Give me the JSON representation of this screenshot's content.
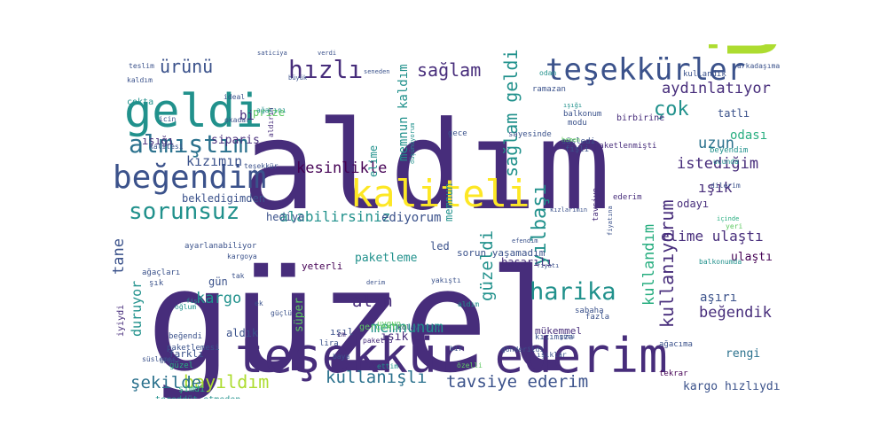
{
  "word_cloud": {
    "palette": {
      "purple": "#472d7b",
      "dark_purple": "#440154",
      "indigo": "#3b528b",
      "blue": "#2c728e",
      "teal": "#21918c",
      "green": "#28ae80",
      "lime": "#5ec962",
      "yellow_green": "#addc30",
      "yellow": "#fde725"
    },
    "words": [
      {
        "text": "güzel",
        "color": "purple"
      },
      {
        "text": "aldım",
        "color": "purple"
      },
      {
        "text": "ürün",
        "color": "yellow_green"
      },
      {
        "text": "teşekkür ederim",
        "color": "purple"
      },
      {
        "text": "kaliteli",
        "color": "yellow"
      },
      {
        "text": "geldi",
        "color": "teal"
      },
      {
        "text": "beğendim",
        "color": "indigo"
      },
      {
        "text": "almıştım",
        "color": "blue"
      },
      {
        "text": "teşekkürler",
        "color": "indigo"
      },
      {
        "text": "sorunsuz",
        "color": "teal"
      },
      {
        "text": "harika",
        "color": "teal"
      },
      {
        "text": "hızlı",
        "color": "purple"
      },
      {
        "text": "ürünü",
        "color": "indigo"
      },
      {
        "text": "sağlam",
        "color": "purple"
      },
      {
        "text": "yılbaşı",
        "color": "teal"
      },
      {
        "text": "sağlam geldi",
        "color": "teal"
      },
      {
        "text": "çok",
        "color": "teal"
      },
      {
        "text": "aydınlatıyor",
        "color": "purple"
      },
      {
        "text": "uzun",
        "color": "blue"
      },
      {
        "text": "odası",
        "color": "green"
      },
      {
        "text": "istediğim",
        "color": "purple"
      },
      {
        "text": "ışık",
        "color": "purple"
      },
      {
        "text": "kullanıyorum",
        "color": "purple"
      },
      {
        "text": "kesinlikle",
        "color": "dark_purple"
      },
      {
        "text": "bayıldım",
        "color": "yellow_green"
      },
      {
        "text": "kullanışlı",
        "color": "blue"
      },
      {
        "text": "tavsiye ederim",
        "color": "indigo"
      },
      {
        "text": "şekilde",
        "color": "blue"
      },
      {
        "text": "kargo",
        "color": "teal"
      },
      {
        "text": "tane",
        "color": "indigo"
      },
      {
        "text": "alın",
        "color": "purple"
      },
      {
        "text": "güzeldi",
        "color": "teal"
      },
      {
        "text": "memnunum",
        "color": "teal"
      },
      {
        "text": "beğendik",
        "color": "purple"
      },
      {
        "text": "kullandım",
        "color": "green"
      },
      {
        "text": "elime ulaştı",
        "color": "purple"
      },
      {
        "text": "alabilirsiniz",
        "color": "teal"
      },
      {
        "text": "ediyorum",
        "color": "indigo"
      },
      {
        "text": "duruyor",
        "color": "teal"
      },
      {
        "text": "aşırı",
        "color": "indigo"
      },
      {
        "text": "rengi",
        "color": "blue"
      },
      {
        "text": "kargo hızlıydı",
        "color": "indigo"
      },
      {
        "text": "ulaştı",
        "color": "dark_purple"
      },
      {
        "text": "ışık",
        "color": "purple"
      },
      {
        "text": "kızımın",
        "color": "indigo"
      },
      {
        "text": "paketleme",
        "color": "teal"
      },
      {
        "text": "memnun",
        "color": "teal"
      },
      {
        "text": "memnun kaldım",
        "color": "teal"
      },
      {
        "text": "elime",
        "color": "teal"
      },
      {
        "text": "hediye",
        "color": "indigo"
      },
      {
        "text": "bekledigimden",
        "color": "indigo"
      },
      {
        "text": "sipariş",
        "color": "purple"
      },
      {
        "text": "bi",
        "color": "purple"
      },
      {
        "text": "prize",
        "color": "lime"
      },
      {
        "text": "ışığı",
        "color": "purple"
      },
      {
        "text": "led",
        "color": "indigo"
      },
      {
        "text": "başarılı",
        "color": "purple"
      },
      {
        "text": "aldık",
        "color": "indigo"
      },
      {
        "text": "gün",
        "color": "indigo"
      },
      {
        "text": "süper",
        "color": "lime"
      },
      {
        "text": "ışıl",
        "color": "indigo"
      },
      {
        "text": "tatlı",
        "color": "indigo"
      },
      {
        "text": "odayı",
        "color": "purple"
      },
      {
        "text": "yeterli",
        "color": "dark_purple"
      },
      {
        "text": "sorun yaşamadım",
        "color": "indigo"
      },
      {
        "text": "çokta",
        "color": "teal"
      },
      {
        "text": "ramazan",
        "color": "indigo"
      },
      {
        "text": "paketlenmişti",
        "color": "purple"
      },
      {
        "text": "birbirine",
        "color": "purple"
      },
      {
        "text": "ederim",
        "color": "purple"
      },
      {
        "text": "mükemmel",
        "color": "purple"
      },
      {
        "text": "ağacıma",
        "color": "indigo"
      },
      {
        "text": "tekrar",
        "color": "dark_purple"
      },
      {
        "text": "fazla",
        "color": "indigo"
      },
      {
        "text": "sabaha",
        "color": "indigo"
      },
      {
        "text": "farklı",
        "color": "indigo"
      },
      {
        "text": "güzel",
        "color": "green"
      },
      {
        "text": "şimdi",
        "color": "green"
      },
      {
        "text": "iyiydi",
        "color": "purple"
      },
      {
        "text": "tereddüt etmeden",
        "color": "teal"
      },
      {
        "text": "lira",
        "color": "indigo"
      },
      {
        "text": "gerçekten",
        "color": "lime"
      },
      {
        "text": "kullandık",
        "color": "indigo"
      },
      {
        "text": "arkadaşıma",
        "color": "indigo"
      },
      {
        "text": "kızımıza",
        "color": "indigo"
      },
      {
        "text": "tavsiye",
        "color": "purple"
      },
      {
        "text": "fişli",
        "color": "indigo"
      },
      {
        "text": "modu",
        "color": "indigo"
      },
      {
        "text": "sayesinde",
        "color": "indigo"
      },
      {
        "text": "gece",
        "color": "indigo"
      },
      {
        "text": "teslim",
        "color": "indigo"
      },
      {
        "text": "kaldım",
        "color": "indigo"
      },
      {
        "text": "okadar",
        "color": "indigo"
      },
      {
        "text": "ideal",
        "color": "indigo"
      },
      {
        "text": "kalitesi",
        "color": "indigo"
      },
      {
        "text": "teşekkür",
        "color": "indigo"
      },
      {
        "text": "paket",
        "color": "purple"
      },
      {
        "text": "kolaylıkla",
        "color": "indigo"
      },
      {
        "text": "derim",
        "color": "indigo"
      },
      {
        "text": "kargoya",
        "color": "indigo"
      },
      {
        "text": "yeri",
        "color": "lime"
      },
      {
        "text": "içinde",
        "color": "green"
      },
      {
        "text": "balkonumda",
        "color": "teal"
      },
      {
        "text": "dilerim",
        "color": "indigo"
      },
      {
        "text": "ucunda",
        "color": "teal"
      },
      {
        "text": "beyendim",
        "color": "teal"
      },
      {
        "text": "süsledi",
        "color": "indigo"
      },
      {
        "text": "fiyatı",
        "color": "indigo"
      },
      {
        "text": "yakıştı",
        "color": "indigo"
      },
      {
        "text": "aldım",
        "color": "teal"
      },
      {
        "text": "ek",
        "color": "indigo"
      },
      {
        "text": "baya",
        "color": "indigo"
      },
      {
        "text": "cm",
        "color": "purple"
      },
      {
        "text": "ettim",
        "color": "teal"
      },
      {
        "text": "uygun",
        "color": "lime"
      },
      {
        "text": "gönderildi",
        "color": "indigo"
      },
      {
        "text": "ışıklar",
        "color": "indigo"
      },
      {
        "text": "bir",
        "color": "indigo"
      },
      {
        "text": "tak",
        "color": "indigo"
      },
      {
        "text": "şık",
        "color": "indigo"
      },
      {
        "text": "fiş",
        "color": "teal"
      },
      {
        "text": "günü",
        "color": "indigo"
      },
      {
        "text": "beğendi",
        "color": "indigo"
      },
      {
        "text": "oğlum",
        "color": "teal"
      },
      {
        "text": "özelli",
        "color": "lime"
      },
      {
        "text": "kızlarımın",
        "color": "indigo"
      },
      {
        "text": "efendim",
        "color": "indigo"
      },
      {
        "text": "büyük",
        "color": "indigo"
      },
      {
        "text": "seneden",
        "color": "indigo"
      },
      {
        "text": "saticiya",
        "color": "indigo"
      },
      {
        "text": "verdi",
        "color": "indigo"
      },
      {
        "text": "icin",
        "color": "indigo"
      },
      {
        "text": "aldırın",
        "color": "purple"
      },
      {
        "text": "ağacını",
        "color": "teal"
      },
      {
        "text": "balkonum",
        "color": "indigo"
      },
      {
        "text": "fiyatına",
        "color": "indigo"
      },
      {
        "text": "süslemesi",
        "color": "indigo"
      },
      {
        "text": "paketlemesi",
        "color": "indigo"
      },
      {
        "text": "ürün",
        "color": "indigo"
      },
      {
        "text": "güçlü",
        "color": "indigo"
      },
      {
        "text": "ağaçları",
        "color": "indigo"
      },
      {
        "text": "odan",
        "color": "teal"
      },
      {
        "text": "ışığı",
        "color": "teal"
      },
      {
        "text": "hemen",
        "color": "lime"
      },
      {
        "text": "ayarlanabiliyor",
        "color": "indigo"
      },
      {
        "text": "düşünüyorum",
        "color": "teal"
      }
    ]
  }
}
